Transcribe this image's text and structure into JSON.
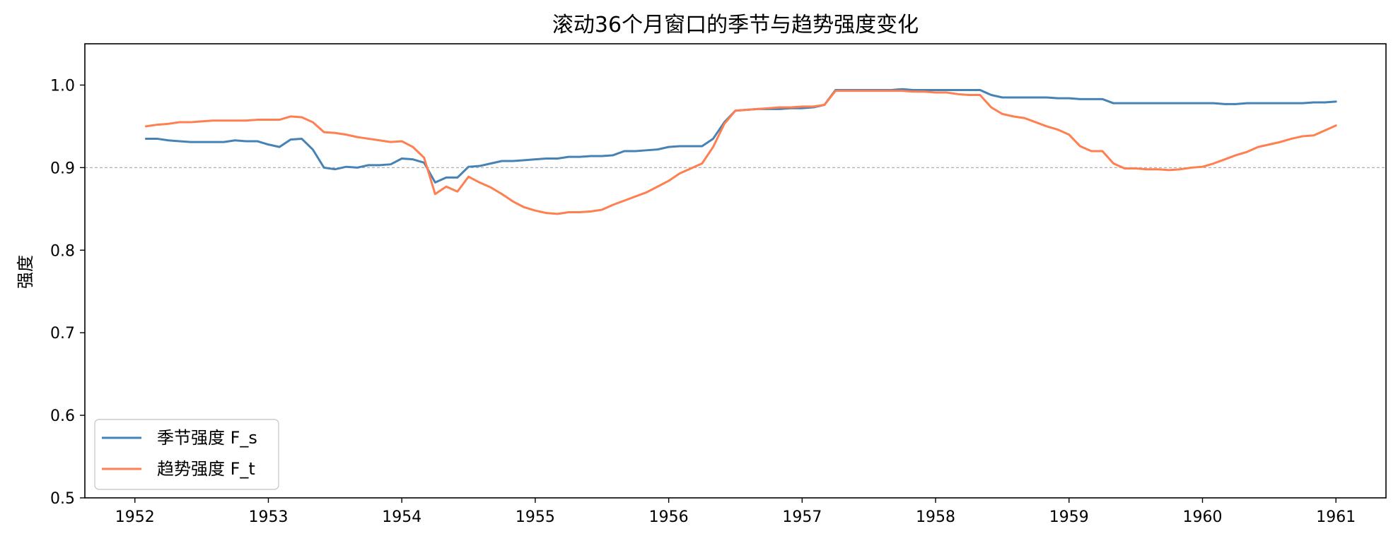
{
  "chart_data": {
    "type": "line",
    "title": "滚动36个月窗口的季节与趋势强度变化",
    "xlabel": "",
    "ylabel": "强度",
    "xlim": [
      1951.625,
      1961.375
    ],
    "ylim": [
      0.5,
      1.05
    ],
    "x_ticks": [
      "1952",
      "1953",
      "1954",
      "1955",
      "1956",
      "1957",
      "1958",
      "1959",
      "1960",
      "1961"
    ],
    "y_ticks": [
      "0.5",
      "0.6",
      "0.7",
      "0.8",
      "0.9",
      "1.0"
    ],
    "reference_line": {
      "y": 0.9,
      "style": "dashed",
      "color": "#b0b0b0"
    },
    "grid": false,
    "legend_position": "lower-left",
    "x": [
      1952.083,
      1952.167,
      1952.25,
      1952.333,
      1952.417,
      1952.5,
      1952.583,
      1952.667,
      1952.75,
      1952.833,
      1952.917,
      1953.0,
      1953.083,
      1953.167,
      1953.25,
      1953.333,
      1953.417,
      1953.5,
      1953.583,
      1953.667,
      1953.75,
      1953.833,
      1953.917,
      1954.0,
      1954.083,
      1954.167,
      1954.25,
      1954.333,
      1954.417,
      1954.5,
      1954.583,
      1954.667,
      1954.75,
      1954.833,
      1954.917,
      1955.0,
      1955.083,
      1955.167,
      1955.25,
      1955.333,
      1955.417,
      1955.5,
      1955.583,
      1955.667,
      1955.75,
      1955.833,
      1955.917,
      1956.0,
      1956.083,
      1956.167,
      1956.25,
      1956.333,
      1956.417,
      1956.5,
      1956.583,
      1956.667,
      1956.75,
      1956.833,
      1956.917,
      1957.0,
      1957.083,
      1957.167,
      1957.25,
      1957.333,
      1957.417,
      1957.5,
      1957.583,
      1957.667,
      1957.75,
      1957.833,
      1957.917,
      1958.0,
      1958.083,
      1958.167,
      1958.25,
      1958.333,
      1958.417,
      1958.5,
      1958.583,
      1958.667,
      1958.75,
      1958.833,
      1958.917,
      1959.0,
      1959.083,
      1959.167,
      1959.25,
      1959.333,
      1959.417,
      1959.5,
      1959.583,
      1959.667,
      1959.75,
      1959.833,
      1959.917,
      1960.0,
      1960.083,
      1960.167,
      1960.25,
      1960.333,
      1960.417,
      1960.5,
      1960.583,
      1960.667,
      1960.75,
      1960.833,
      1960.917,
      1961.0
    ],
    "series": [
      {
        "name": "季节强度 F_s",
        "color": "#4682b4",
        "values": [
          0.935,
          0.935,
          0.933,
          0.932,
          0.931,
          0.931,
          0.931,
          0.931,
          0.933,
          0.932,
          0.932,
          0.928,
          0.925,
          0.934,
          0.935,
          0.922,
          0.9,
          0.898,
          0.901,
          0.9,
          0.903,
          0.903,
          0.904,
          0.911,
          0.91,
          0.906,
          0.882,
          0.888,
          0.888,
          0.901,
          0.902,
          0.905,
          0.908,
          0.908,
          0.909,
          0.91,
          0.911,
          0.911,
          0.913,
          0.913,
          0.914,
          0.914,
          0.915,
          0.92,
          0.92,
          0.921,
          0.922,
          0.925,
          0.926,
          0.926,
          0.926,
          0.935,
          0.955,
          0.969,
          0.97,
          0.971,
          0.971,
          0.971,
          0.972,
          0.972,
          0.973,
          0.976,
          0.994,
          0.994,
          0.994,
          0.994,
          0.994,
          0.994,
          0.995,
          0.994,
          0.994,
          0.994,
          0.994,
          0.994,
          0.994,
          0.994,
          0.988,
          0.985,
          0.985,
          0.985,
          0.985,
          0.985,
          0.984,
          0.984,
          0.983,
          0.983,
          0.983,
          0.978,
          0.978,
          0.978,
          0.978,
          0.978,
          0.978,
          0.978,
          0.978,
          0.978,
          0.978,
          0.977,
          0.977,
          0.978,
          0.978,
          0.978,
          0.978,
          0.978,
          0.978,
          0.979,
          0.979,
          0.98
        ]
      },
      {
        "name": "趋势强度 F_t",
        "color": "#ff7f50",
        "values": [
          0.95,
          0.952,
          0.953,
          0.955,
          0.955,
          0.956,
          0.957,
          0.957,
          0.957,
          0.957,
          0.958,
          0.958,
          0.958,
          0.962,
          0.961,
          0.955,
          0.943,
          0.942,
          0.94,
          0.937,
          0.935,
          0.933,
          0.931,
          0.932,
          0.925,
          0.912,
          0.868,
          0.877,
          0.871,
          0.889,
          0.882,
          0.876,
          0.868,
          0.859,
          0.852,
          0.848,
          0.845,
          0.844,
          0.846,
          0.846,
          0.847,
          0.849,
          0.855,
          0.86,
          0.865,
          0.87,
          0.877,
          0.884,
          0.893,
          0.899,
          0.905,
          0.925,
          0.953,
          0.969,
          0.97,
          0.971,
          0.972,
          0.973,
          0.973,
          0.974,
          0.974,
          0.976,
          0.993,
          0.993,
          0.993,
          0.993,
          0.993,
          0.993,
          0.993,
          0.992,
          0.992,
          0.991,
          0.991,
          0.989,
          0.988,
          0.988,
          0.973,
          0.965,
          0.962,
          0.96,
          0.955,
          0.95,
          0.946,
          0.94,
          0.926,
          0.92,
          0.92,
          0.905,
          0.899,
          0.899,
          0.898,
          0.898,
          0.897,
          0.898,
          0.9,
          0.901,
          0.905,
          0.91,
          0.915,
          0.919,
          0.925,
          0.928,
          0.931,
          0.935,
          0.938,
          0.939,
          0.945,
          0.951
        ]
      }
    ]
  }
}
